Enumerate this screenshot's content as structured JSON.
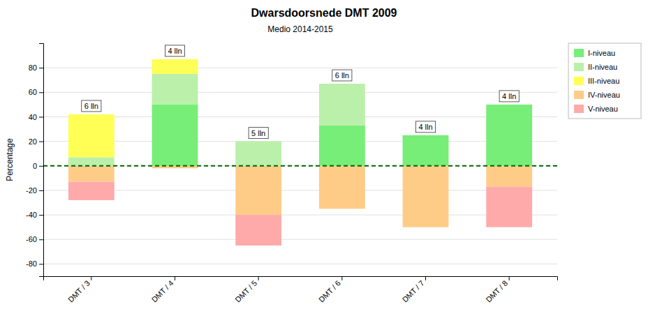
{
  "chart_data": {
    "type": "bar",
    "stacked": true,
    "title": "Dwarsdoorsnede DMT 2009",
    "subtitle": "Medio 2014-2015",
    "ylabel": "Percentage",
    "categories": [
      "DMT / 3",
      "DMT / 4",
      "DMT / 5",
      "DMT / 6",
      "DMT / 7",
      "DMT / 8"
    ],
    "annotations": [
      "6 lln",
      "4 lln",
      "5 lln",
      "6 lln",
      "4 lln",
      "4 lln"
    ],
    "series": [
      {
        "name": "I-niveau",
        "color": "#77ee77",
        "values": [
          0,
          50,
          0,
          33,
          25,
          50
        ]
      },
      {
        "name": "II-niveau",
        "color": "#bbf0aa",
        "values": [
          7,
          25,
          20,
          34,
          0,
          0
        ]
      },
      {
        "name": "III-niveau",
        "color": "#ffff55",
        "values": [
          35,
          12,
          0,
          0,
          0,
          0
        ]
      },
      {
        "name": "IV-niveau",
        "color": "#ffcc88",
        "values": [
          -13,
          -2,
          -40,
          -35,
          -50,
          -17
        ]
      },
      {
        "name": "V-niveau",
        "color": "#ffaaaa",
        "values": [
          -15,
          0,
          -25,
          0,
          0,
          -33
        ]
      }
    ],
    "ylim": [
      -90,
      100
    ],
    "yticks": [
      -80,
      -60,
      -40,
      -20,
      0,
      20,
      40,
      60,
      80
    ],
    "grid": true,
    "legend": "upper right"
  }
}
